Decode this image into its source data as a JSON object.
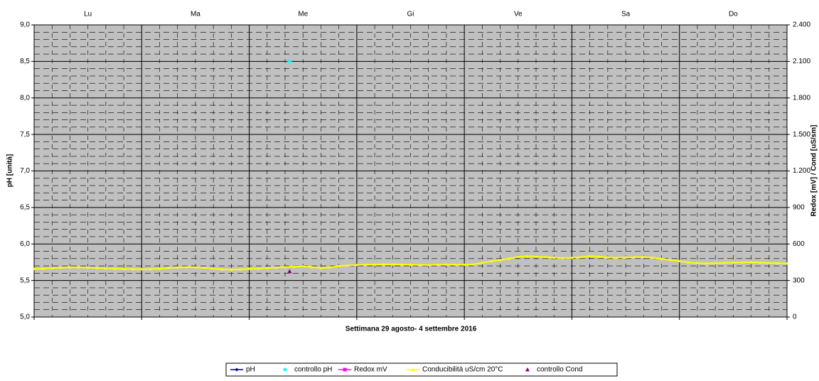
{
  "chart_data": {
    "type": "line",
    "day_labels": [
      "Lu",
      "Ma",
      "Me",
      "Gi",
      "Ve",
      "Sa",
      "Do"
    ],
    "x_label": "Settimana   29 agosto-  4 settembre   2016",
    "y_label": "pH [unità]",
    "y2_label": "Redox [mV] / Cond [uS/sm]",
    "xlim": [
      0,
      168
    ],
    "xticks": [
      0,
      24,
      48,
      72,
      96,
      120,
      144,
      168
    ],
    "ylim": [
      5,
      9
    ],
    "yticks": [
      {
        "value": 5,
        "label": "5,0"
      },
      {
        "value": 5.5,
        "label": "5,5"
      },
      {
        "value": 6,
        "label": "6,0"
      },
      {
        "value": 6.5,
        "label": "6,5"
      },
      {
        "value": 7,
        "label": "7,0"
      },
      {
        "value": 7.5,
        "label": "7,5"
      },
      {
        "value": 8,
        "label": "8,0"
      },
      {
        "value": 8.5,
        "label": "8,5"
      },
      {
        "value": 9,
        "label": "9,0"
      }
    ],
    "y2lim": [
      0,
      2400
    ],
    "y2ticks": [
      0,
      300,
      600,
      900,
      {
        "value": 1200,
        "label": "1.200"
      },
      {
        "value": 1500,
        "label": "1.500"
      },
      {
        "value": 1800,
        "label": "1.800"
      },
      {
        "value": 2100,
        "label": "2.100"
      },
      {
        "value": 2400,
        "label": "2.400"
      }
    ],
    "grid": true,
    "legend": "bottom",
    "series": [
      {
        "name": "pH",
        "color": "#000080",
        "marker": "diamond",
        "line": true,
        "x": [],
        "values": []
      },
      {
        "name": "controllo pH",
        "color": "#00ffff",
        "marker": "diamond",
        "line": false,
        "x": [
          57
        ],
        "values": [
          8.5
        ]
      },
      {
        "name": "Redox mV",
        "color": "#ff00ff",
        "marker": "square",
        "line": true,
        "axis": "y2",
        "x": [],
        "values": []
      },
      {
        "name": "Conducibilità uS/cm 20°C",
        "color": "#ffff00",
        "marker": "triangle",
        "line": true,
        "axis": "y2",
        "x": [
          0,
          2,
          4,
          6,
          8,
          10,
          12,
          14,
          16,
          18,
          20,
          22,
          24,
          26,
          28,
          30,
          32,
          34,
          36,
          38,
          40,
          42,
          44,
          46,
          48,
          50,
          52,
          54,
          56,
          58,
          60,
          62,
          64,
          66,
          68,
          70,
          72,
          74,
          76,
          78,
          80,
          82,
          84,
          86,
          88,
          90,
          92,
          94,
          96,
          98,
          100,
          102,
          104,
          106,
          108,
          110,
          112,
          114,
          116,
          118,
          120,
          122,
          124,
          126,
          128,
          130,
          132,
          134,
          136,
          138,
          140,
          142,
          144,
          146,
          148,
          150,
          152,
          154,
          156,
          158,
          160,
          162,
          164,
          166,
          168
        ],
        "values": [
          395,
          398,
          402,
          405,
          408,
          408,
          406,
          403,
          400,
          397,
          395,
          394,
          393,
          394,
          398,
          403,
          407,
          410,
          408,
          404,
          398,
          392,
          390,
          392,
          396,
          398,
          402,
          406,
          410,
          414,
          416,
          410,
          402,
          408,
          418,
          424,
          428,
          430,
          432,
          433,
          433,
          432,
          430,
          428,
          428,
          430,
          431,
          431,
          430,
          432,
          445,
          458,
          468,
          480,
          495,
          500,
          497,
          492,
          488,
          485,
          487,
          492,
          500,
          496,
          490,
          487,
          490,
          492,
          493,
          488,
          478,
          468,
          460,
          448,
          442,
          440,
          442,
          445,
          447,
          448,
          450,
          447,
          444,
          442,
          440
        ]
      },
      {
        "name": "controllo Cond",
        "color": "#800080",
        "marker": "triangle",
        "line": false,
        "axis": "y2",
        "x": [
          57
        ],
        "values": [
          375
        ]
      }
    ]
  }
}
